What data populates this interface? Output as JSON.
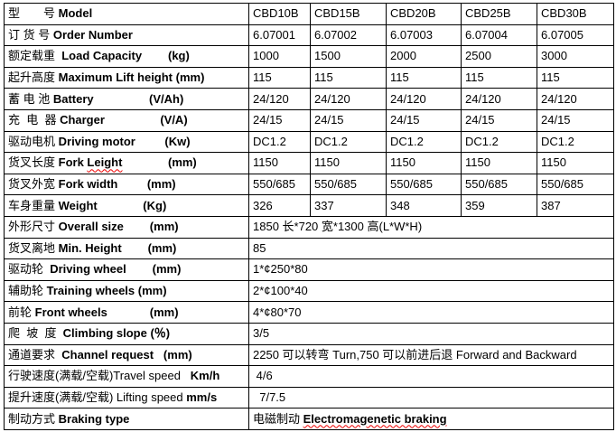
{
  "models_header": {
    "label": {
      "cn": "型　　号 ",
      "en": "Model",
      "unit": ""
    },
    "values": [
      "CBD10B",
      "CBD15B",
      "CBD20B",
      "CBD25B",
      "CBD30B"
    ]
  },
  "rows_multi": [
    {
      "cn": "订 货 号 ",
      "en": "Order Number",
      "unit": "",
      "values": [
        "6.07001",
        "6.07002",
        "6.07003",
        "6.07004",
        "6.07005"
      ]
    },
    {
      "cn": "额定载重 ",
      "en": " Load Capacity",
      "unit": "        (kg)",
      "values": [
        "1000",
        "1500",
        "2000",
        "2500",
        "3000"
      ]
    },
    {
      "cn": "起升高度 ",
      "en": "Maximum Lift height",
      "unit": " (mm)",
      "values": [
        "115",
        "115",
        "115",
        "115",
        "115"
      ]
    },
    {
      "cn": "蓄 电 池 ",
      "en": "Battery",
      "unit": "                 (V/Ah)",
      "values": [
        "24/120",
        "24/120",
        "24/120",
        "24/120",
        "24/120"
      ]
    },
    {
      "cn": "充  电  器 ",
      "en": "Charger",
      "unit": "                 (V/A)",
      "values": [
        "24/15",
        "24/15",
        "24/15",
        "24/15",
        "24/15"
      ]
    },
    {
      "cn": "驱动电机 ",
      "en": "Driving motor",
      "unit": "         (Kw)",
      "values": [
        "DC1.2",
        "DC1.2",
        "DC1.2",
        "DC1.2",
        "DC1.2"
      ]
    },
    {
      "cn": "货叉长度 ",
      "en": "Fork Leight",
      "unit": "              (mm)",
      "values": [
        "1150",
        "1150",
        "1150",
        "1150",
        "1150"
      ]
    },
    {
      "cn": "货叉外宽 ",
      "en": "Fork width",
      "unit": "         (mm)",
      "values": [
        "550/685",
        "550/685",
        "550/685",
        "550/685",
        "550/685"
      ]
    },
    {
      "cn": "车身重量 ",
      "en": "Weight",
      "unit": "              (Kg)",
      "values": [
        "326",
        "337",
        "348",
        "359",
        "387"
      ]
    }
  ],
  "rows_single": [
    {
      "cn": "外形尺寸 ",
      "en": "Overall size",
      "unit": "        (mm)",
      "value": "1850 长*720 宽*1300 高(L*W*H)"
    },
    {
      "cn": "货叉离地 ",
      "en": "Min. Height",
      "unit": "        (mm)",
      "value": "85"
    },
    {
      "cn": "驱动轮  ",
      "en": "Driving wheel",
      "unit": "        (mm)",
      "value": "1*¢250*80"
    },
    {
      "cn": "辅助轮 ",
      "en": "Training wheels (mm)",
      "unit": "",
      "value": "2*¢100*40"
    },
    {
      "cn": "前轮 ",
      "en": "Front wheels",
      "unit": "             (mm)",
      "value": "4*¢80*70"
    },
    {
      "cn": "爬  坡  度  ",
      "en": "Climbing slope (％)",
      "unit": "",
      "value": "3/5"
    },
    {
      "cn": "通道要求  ",
      "en": "Channel request",
      "unit": "   (mm)",
      "value": "2250 可以转弯 Turn,750 可以前进后退 Forward and Backward"
    },
    {
      "cn": "行驶速度(满载/空载)",
      "en_plain": "Travel speed",
      "unit": "   Km/h",
      "value": " 4/6"
    },
    {
      "cn": "提升速度(满载/空载) ",
      "en_plain": "Lifting speed",
      "unit": " mm/s",
      "value": "  7/7.5"
    },
    {
      "cn": "制动方式 ",
      "en": "Braking type",
      "unit": "",
      "value_cn": "电磁制动 ",
      "value_en": "Electromagenetic braking"
    }
  ]
}
